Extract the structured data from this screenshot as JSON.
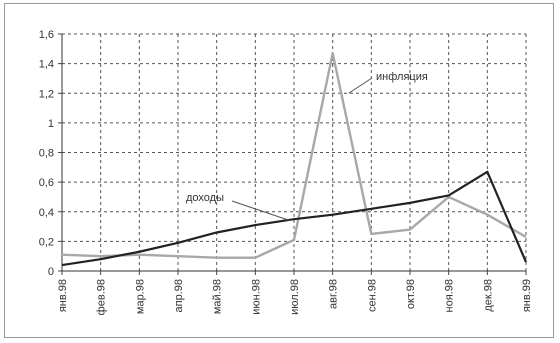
{
  "chart_data": {
    "type": "line",
    "categories": [
      "янв.98",
      "фев.98",
      "мар.98",
      "апр.98",
      "май.98",
      "июн.98",
      "июл.98",
      "авг.98",
      "сен.98",
      "окт.98",
      "ноя.98",
      "дек.98",
      "янв.99"
    ],
    "ylim": [
      0,
      1.6
    ],
    "yticks": [
      "0",
      "0,2",
      "0,4",
      "0,6",
      "0,8",
      "1",
      "1,2",
      "1,4",
      "1,6"
    ],
    "grid": true,
    "series": [
      {
        "name": "инфляция",
        "color": "#a8a8a8",
        "values": [
          0.11,
          0.1,
          0.11,
          0.1,
          0.09,
          0.09,
          0.21,
          1.47,
          0.25,
          0.28,
          0.5,
          0.38,
          0.23
        ]
      },
      {
        "name": "доходы",
        "color": "#222222",
        "values": [
          0.04,
          0.08,
          0.13,
          0.19,
          0.26,
          0.31,
          0.35,
          0.38,
          0.42,
          0.46,
          0.51,
          0.67,
          0.06
        ]
      }
    ],
    "annotations": [
      {
        "text": "инфляция",
        "series": 0
      },
      {
        "text": "доходы",
        "series": 1
      }
    ]
  }
}
